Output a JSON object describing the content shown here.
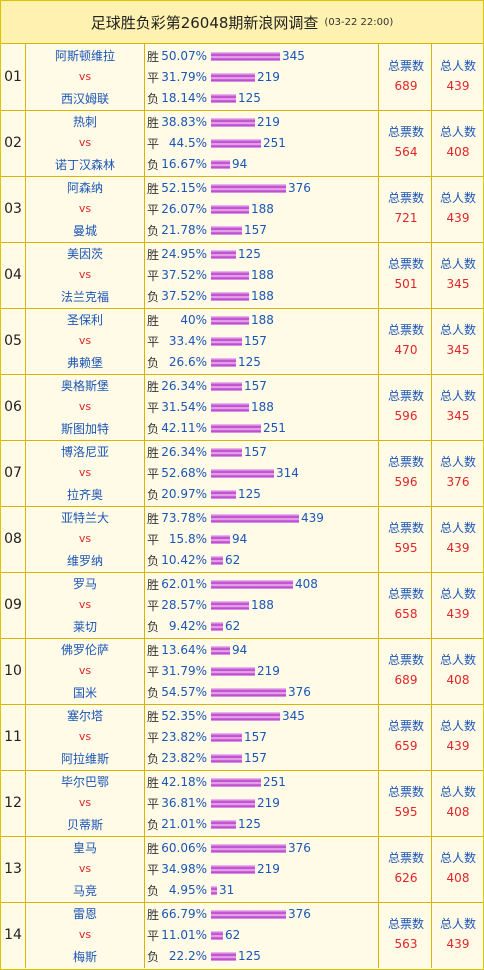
{
  "title": "足球胜负彩第26048期新浪网调查",
  "date": "(03-22 22:00)",
  "labels": {
    "win": "胜",
    "draw": "平",
    "lose": "负",
    "vs": "vs",
    "total_votes": "总票数",
    "total_people": "总人数"
  },
  "matches": [
    {
      "num": "01",
      "home": "阿斯顿维拉",
      "away": "西汉姆联",
      "win_pct": "50.07%",
      "win": 345,
      "draw_pct": "31.79%",
      "draw": 219,
      "lose_pct": "18.14%",
      "lose": 125,
      "votes": "689",
      "people": "439"
    },
    {
      "num": "02",
      "home": "热刺",
      "away": "诺丁汉森林",
      "win_pct": "38.83%",
      "win": 219,
      "draw_pct": "44.5%",
      "draw": 251,
      "lose_pct": "16.67%",
      "lose": 94,
      "votes": "564",
      "people": "408"
    },
    {
      "num": "03",
      "home": "阿森纳",
      "away": "曼城",
      "win_pct": "52.15%",
      "win": 376,
      "draw_pct": "26.07%",
      "draw": 188,
      "lose_pct": "21.78%",
      "lose": 157,
      "votes": "721",
      "people": "439"
    },
    {
      "num": "04",
      "home": "美因茨",
      "away": "法兰克福",
      "win_pct": "24.95%",
      "win": 125,
      "draw_pct": "37.52%",
      "draw": 188,
      "lose_pct": "37.52%",
      "lose": 188,
      "votes": "501",
      "people": "345"
    },
    {
      "num": "05",
      "home": "圣保利",
      "away": "弗赖堡",
      "win_pct": "40%",
      "win": 188,
      "draw_pct": "33.4%",
      "draw": 157,
      "lose_pct": "26.6%",
      "lose": 125,
      "votes": "470",
      "people": "345"
    },
    {
      "num": "06",
      "home": "奥格斯堡",
      "away": "斯图加特",
      "win_pct": "26.34%",
      "win": 157,
      "draw_pct": "31.54%",
      "draw": 188,
      "lose_pct": "42.11%",
      "lose": 251,
      "votes": "596",
      "people": "345"
    },
    {
      "num": "07",
      "home": "博洛尼亚",
      "away": "拉齐奥",
      "win_pct": "26.34%",
      "win": 157,
      "draw_pct": "52.68%",
      "draw": 314,
      "lose_pct": "20.97%",
      "lose": 125,
      "votes": "596",
      "people": "376"
    },
    {
      "num": "08",
      "home": "亚特兰大",
      "away": "维罗纳",
      "win_pct": "73.78%",
      "win": 439,
      "draw_pct": "15.8%",
      "draw": 94,
      "lose_pct": "10.42%",
      "lose": 62,
      "votes": "595",
      "people": "439"
    },
    {
      "num": "09",
      "home": "罗马",
      "away": "莱切",
      "win_pct": "62.01%",
      "win": 408,
      "draw_pct": "28.57%",
      "draw": 188,
      "lose_pct": "9.42%",
      "lose": 62,
      "votes": "658",
      "people": "439"
    },
    {
      "num": "10",
      "home": "佛罗伦萨",
      "away": "国米",
      "win_pct": "13.64%",
      "win": 94,
      "draw_pct": "31.79%",
      "draw": 219,
      "lose_pct": "54.57%",
      "lose": 376,
      "votes": "689",
      "people": "408"
    },
    {
      "num": "11",
      "home": "塞尔塔",
      "away": "阿拉维斯",
      "win_pct": "52.35%",
      "win": 345,
      "draw_pct": "23.82%",
      "draw": 157,
      "lose_pct": "23.82%",
      "lose": 157,
      "votes": "659",
      "people": "439"
    },
    {
      "num": "12",
      "home": "毕尔巴鄂",
      "away": "贝蒂斯",
      "win_pct": "42.18%",
      "win": 251,
      "draw_pct": "36.81%",
      "draw": 219,
      "lose_pct": "21.01%",
      "lose": 125,
      "votes": "595",
      "people": "408"
    },
    {
      "num": "13",
      "home": "皇马",
      "away": "马竞",
      "win_pct": "60.06%",
      "win": 376,
      "draw_pct": "34.98%",
      "draw": 219,
      "lose_pct": "4.95%",
      "lose": 31,
      "votes": "626",
      "people": "408"
    },
    {
      "num": "14",
      "home": "雷恩",
      "away": "梅斯",
      "win_pct": "66.79%",
      "win": 376,
      "draw_pct": "11.01%",
      "draw": 62,
      "lose_pct": "22.2%",
      "lose": 125,
      "votes": "563",
      "people": "439"
    }
  ]
}
